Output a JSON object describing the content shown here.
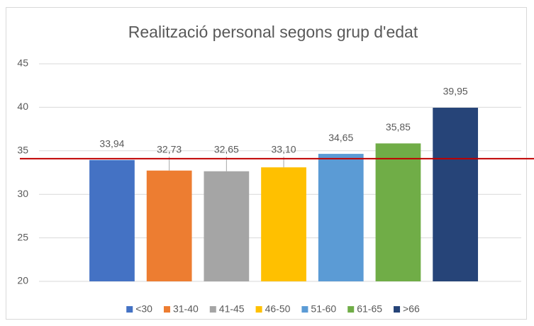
{
  "chart_data": {
    "type": "bar",
    "title": "Realització personal segons grup d'edat",
    "categories": [
      "<30",
      "31-40",
      "41-45",
      "46-50",
      "51-60",
      "61-65",
      ">66"
    ],
    "values": [
      33.94,
      32.73,
      32.65,
      33.1,
      34.65,
      35.85,
      39.95
    ],
    "value_labels": [
      "33,94",
      "32,73",
      "32,65",
      "33,10",
      "34,65",
      "35,85",
      "39,95"
    ],
    "colors": [
      "#4472c4",
      "#ed7d31",
      "#a5a5a5",
      "#ffc000",
      "#5b9bd5",
      "#70ad47",
      "#264478"
    ],
    "ylim": [
      20,
      45
    ],
    "yticks": [
      20,
      25,
      30,
      35,
      40,
      45
    ],
    "grid": true,
    "legend": "bottom",
    "reference_line": {
      "value": 34.1,
      "color": "#c00000"
    }
  }
}
